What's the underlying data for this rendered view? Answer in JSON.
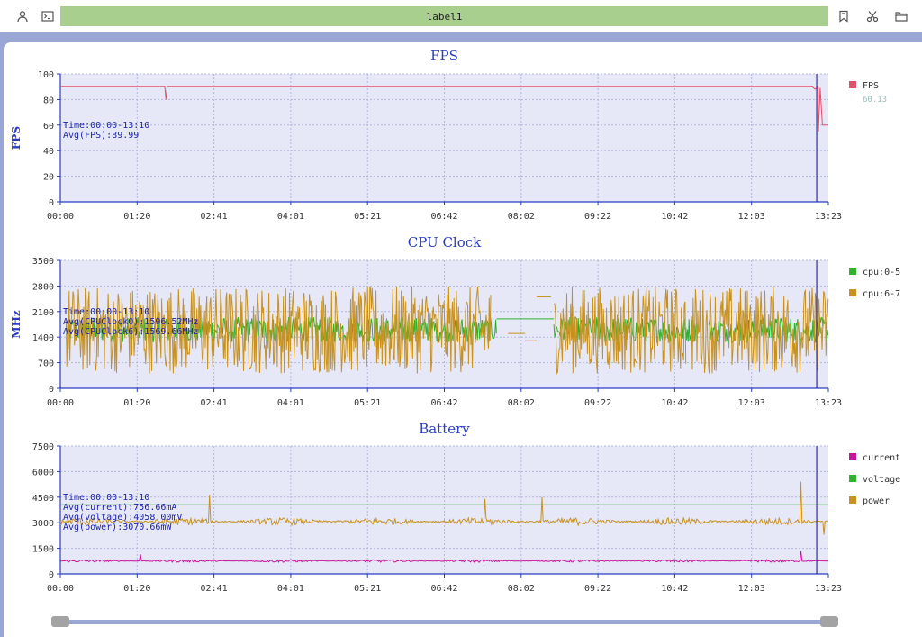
{
  "toolbar": {
    "label": "label1",
    "left_icons": [
      "user-icon",
      "terminal-icon"
    ],
    "right_icons": [
      "bookmark-icon",
      "scissors-icon",
      "folder-open-icon"
    ]
  },
  "colors": {
    "plot_bg": "#e6e8f8",
    "axis": "#2b3dbf",
    "fps": "#e0506a",
    "cpu05": "#2db32d",
    "cpu67": "#c9921f",
    "current": "#c8159c",
    "voltage": "#2db32d",
    "power": "#c9921f",
    "cursor": "#2e2e9e"
  },
  "x_ticks": [
    "00:00",
    "01:20",
    "02:41",
    "04:01",
    "05:21",
    "06:42",
    "08:02",
    "09:22",
    "10:42",
    "12:03",
    "13:23"
  ],
  "slider": {
    "start": 0,
    "end": 1
  },
  "chart_data": [
    {
      "type": "line",
      "title": "FPS",
      "ylabel": "FPS",
      "ylim": [
        0,
        100
      ],
      "yticks": [
        0,
        20,
        40,
        60,
        80,
        100
      ],
      "x_unit": "minutes",
      "xlim": [
        0,
        13.383
      ],
      "cursor_x": 13.18,
      "legend": [
        {
          "name": "FPS",
          "color": "#e0506a",
          "value": "60.13"
        }
      ],
      "annotations": [
        "Time:00:00-13:10",
        "Avg(FPS):89.99"
      ],
      "series": [
        {
          "name": "FPS",
          "color": "#e0506a",
          "points": [
            [
              0,
              90
            ],
            [
              1.82,
              90
            ],
            [
              1.84,
              80
            ],
            [
              1.86,
              90
            ],
            [
              13.1,
              90
            ],
            [
              13.15,
              88
            ],
            [
              13.2,
              90
            ],
            [
              13.21,
              55
            ],
            [
              13.24,
              89
            ],
            [
              13.28,
              60
            ],
            [
              13.383,
              60
            ]
          ]
        }
      ]
    },
    {
      "type": "line",
      "title": "CPU Clock",
      "ylabel": "MHz",
      "ylim": [
        0,
        3500
      ],
      "yticks": [
        0,
        700,
        1400,
        2100,
        2800,
        3500
      ],
      "x_unit": "minutes",
      "xlim": [
        0,
        13.383
      ],
      "cursor_x": 13.18,
      "legend": [
        {
          "name": "cpu:0-5",
          "color": "#2db32d"
        },
        {
          "name": "cpu:6-7",
          "color": "#c9921f"
        }
      ],
      "annotations": [
        "Time:00:00-13:10",
        "Avg(CPUClock0):1596.52MHz",
        "Avg(CPUClock6):1569.66MHz"
      ],
      "series": [
        {
          "name": "cpu:0-5",
          "color": "#2db32d",
          "noise_segments": [
            [
              0.1,
              7.6,
              1250,
              1950
            ],
            [
              8.6,
              11.1,
              1250,
              1950
            ],
            [
              11.3,
              13.38,
              1250,
              1950
            ]
          ],
          "flat_segments": [
            [
              7.6,
              8.6,
              1900
            ]
          ]
        },
        {
          "name": "cpu:6-7",
          "color": "#c9921f",
          "noise_segments": [
            [
              0.1,
              7.5,
              400,
              2800
            ],
            [
              8.6,
              10.9,
              400,
              2800
            ],
            [
              11.0,
              13.38,
              400,
              2800
            ]
          ],
          "flat_segments": [
            [
              7.8,
              8.1,
              1500
            ],
            [
              8.1,
              8.3,
              1300
            ],
            [
              8.3,
              8.55,
              2500
            ]
          ]
        }
      ]
    },
    {
      "type": "line",
      "title": "Battery",
      "ylim": [
        0,
        7500
      ],
      "yticks": [
        0,
        1500,
        3000,
        4500,
        6000,
        7500
      ],
      "x_unit": "minutes",
      "xlim": [
        0,
        13.383
      ],
      "cursor_x": 13.18,
      "legend": [
        {
          "name": "current",
          "color": "#c8159c"
        },
        {
          "name": "voltage",
          "color": "#2db32d"
        },
        {
          "name": "power",
          "color": "#c9921f"
        }
      ],
      "annotations": [
        "Time:00:00-13:10",
        "Avg(current):756.66mA",
        "Avg(voltage):4058.00mV",
        "Avg(power):3070.66mW"
      ],
      "series": [
        {
          "name": "current",
          "color": "#c8159c",
          "base": 760,
          "noise": 160,
          "spikes": [
            [
              1.4,
              1150
            ],
            [
              12.9,
              1350
            ]
          ]
        },
        {
          "name": "voltage",
          "color": "#2db32d",
          "points": [
            [
              0,
              4058
            ],
            [
              13.383,
              4058
            ]
          ]
        },
        {
          "name": "power",
          "color": "#c9921f",
          "base": 3070,
          "noise": 450,
          "spikes": [
            [
              2.6,
              4650
            ],
            [
              7.4,
              4400
            ],
            [
              8.4,
              4500
            ],
            [
              12.9,
              5400
            ],
            [
              13.3,
              2300
            ]
          ]
        }
      ]
    }
  ]
}
